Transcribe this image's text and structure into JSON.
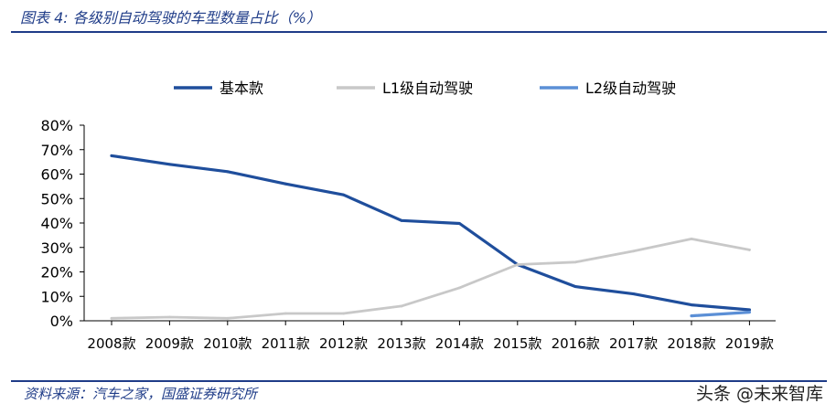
{
  "figure_title": "图表 4:  各级别自动驾驶的车型数量占比（%）",
  "source": "资料来源：汽车之家，国盛证券研究所",
  "watermark": "头条 @未来智库",
  "chart_data": {
    "type": "line",
    "categories": [
      "2008款",
      "2009款",
      "2010款",
      "2011款",
      "2012款",
      "2013款",
      "2014款",
      "2015款",
      "2016款",
      "2017款",
      "2018款",
      "2019款"
    ],
    "series": [
      {
        "name": "基本款",
        "color": "#1f4e9c",
        "values": [
          67.5,
          64,
          61,
          56,
          51.5,
          41,
          39.8,
          23,
          14,
          11,
          6.5,
          4.5
        ]
      },
      {
        "name": "L1级自动驾驶",
        "color": "#c8c8c8",
        "values": [
          1,
          1.5,
          1,
          3,
          3,
          6,
          13.5,
          23,
          24,
          28.5,
          33.5,
          29
        ]
      },
      {
        "name": "L2级自动驾驶",
        "color": "#5b8fd6",
        "values": [
          null,
          null,
          null,
          null,
          null,
          null,
          null,
          null,
          null,
          null,
          2,
          3.5
        ]
      }
    ],
    "yticks": [
      "0%",
      "10%",
      "20%",
      "30%",
      "40%",
      "50%",
      "60%",
      "70%",
      "80%"
    ],
    "ylim": [
      0,
      80
    ],
    "legend": "top",
    "grid": false
  }
}
